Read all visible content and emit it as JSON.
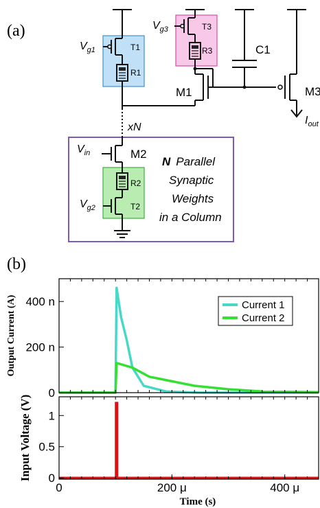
{
  "panel_a": {
    "label": "(a)",
    "xN": "xN",
    "column_text": [
      "N",
      "Parallel",
      "Synaptic",
      "Weights",
      "in a Column"
    ],
    "components": {
      "T1": "T1",
      "R1": "R1",
      "T3": "T3",
      "R3": "R3",
      "C1": "C1",
      "M1": "M1",
      "M3": "M3",
      "M2": "M2",
      "R2": "R2",
      "T2": "T2"
    },
    "signals": {
      "vg1": {
        "base": "V",
        "sub": "g1"
      },
      "vg3": {
        "base": "V",
        "sub": "g3"
      },
      "vin": {
        "base": "V",
        "sub": "in"
      },
      "vg2": {
        "base": "V",
        "sub": "g2"
      },
      "iout": {
        "base": "I",
        "sub": "out"
      }
    },
    "colors": {
      "t1_box": "#bfe0f7",
      "t1_border": "#3f8fd0",
      "t3_box": "#f8c8e8",
      "t3_border": "#e04aa8",
      "column_border": "#7a5bb8",
      "t2_box": "#b8ecb0",
      "t2_border": "#3fae3f"
    }
  },
  "panel_b": {
    "label": "(b)",
    "top_ylabel": "Output Current (A)",
    "bottom_ylabel": "Input Voltage (V)",
    "xlabel": "Time (s)"
  },
  "chart_data": [
    {
      "type": "line",
      "ylabel": "Output Current (A)",
      "xlim": [
        0,
        0.00046
      ],
      "ylim": [
        0,
        5e-07
      ],
      "y_tick_labels": [
        "0",
        "200 n",
        "400 n"
      ],
      "y_ticks": [
        0,
        2e-07,
        4e-07
      ],
      "legend_position": "top-right",
      "series": [
        {
          "name": "Current 1",
          "color": "#48d8c8",
          "x": [
            0,
            0.0001,
            0.000102,
            0.000105,
            0.00011,
            0.00012,
            0.00013,
            0.00015,
            0.00019,
            0.00025,
            0.00046
          ],
          "y": [
            0,
            0,
            4.6e-07,
            4.1e-07,
            3.3e-07,
            2.3e-07,
            1.1e-07,
            3e-08,
            5e-09,
            0,
            0
          ]
        },
        {
          "name": "Current 2",
          "color": "#33e033",
          "x": [
            0,
            0.0001,
            0.000102,
            0.00013,
            0.00016,
            0.0002,
            0.00024,
            0.0003,
            0.00036,
            0.00046
          ],
          "y": [
            0,
            0,
            1.3e-07,
            1.1e-07,
            7e-08,
            5e-08,
            3e-08,
            1.5e-08,
            5e-09,
            2e-09
          ]
        }
      ]
    },
    {
      "type": "line",
      "ylabel": "Input Voltage (V)",
      "xlabel": "Time (s)",
      "xlim": [
        0,
        0.00046
      ],
      "ylim": [
        -0.02,
        1.3
      ],
      "x_tick_labels": [
        "0",
        "200 μ",
        "400 μ"
      ],
      "x_ticks": [
        0,
        0.0002,
        0.0004
      ],
      "y_tick_labels": [
        "0",
        "0.5",
        "1"
      ],
      "y_ticks": [
        0,
        0.5,
        1
      ],
      "series": [
        {
          "color": "#e01010",
          "x": [
            0,
            0.000101,
            0.000101,
            0.000103,
            0.000103,
            0.00046
          ],
          "y": [
            0,
            0,
            1.2,
            1.2,
            0,
            0
          ]
        }
      ]
    }
  ]
}
